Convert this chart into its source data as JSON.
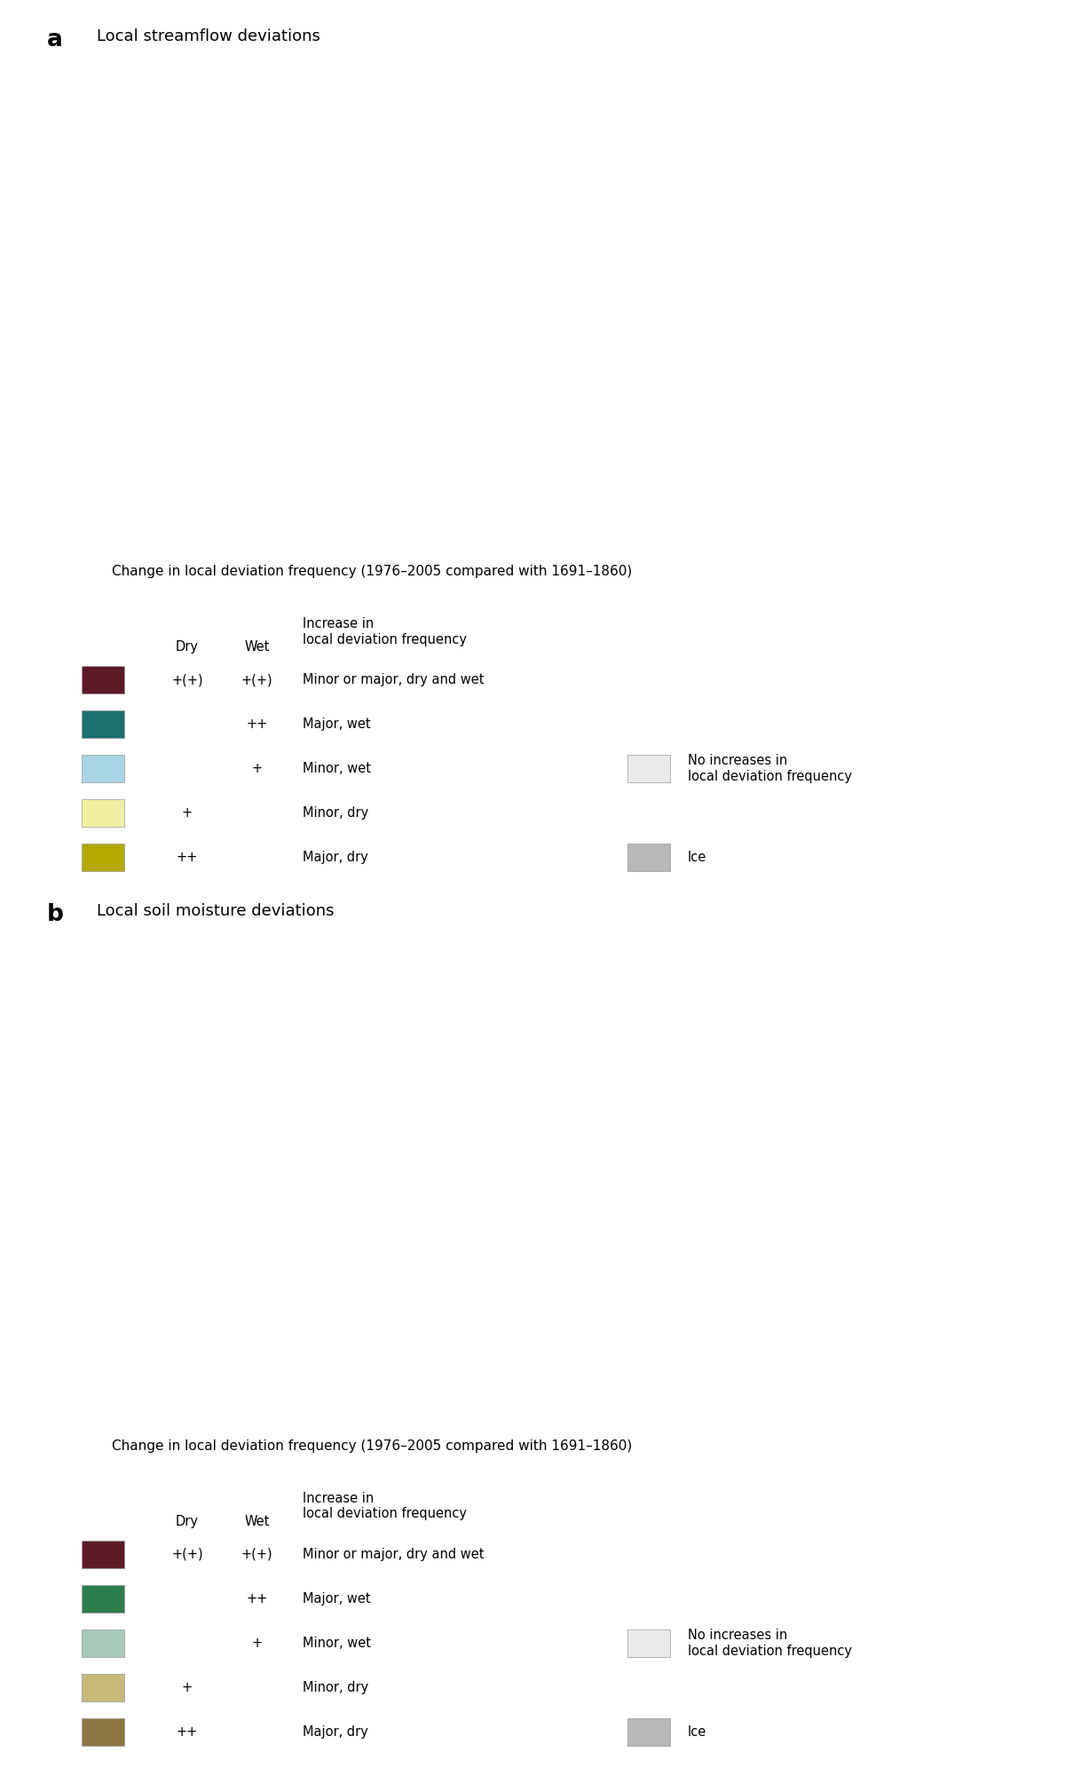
{
  "panel_a_label": "a",
  "panel_a_title": "Local streamflow deviations",
  "panel_b_label": "b",
  "panel_b_title": "Local soil moisture deviations",
  "legend_title": "Change in local deviation frequency (1976–2005 compared with 1691–1860)",
  "col_dry": "Dry",
  "col_wet": "Wet",
  "col_inc": "Increase in\nlocal deviation frequency",
  "legend_rows": [
    {
      "color_key": "both",
      "dry": "+(+)",
      "wet": "+(+)",
      "desc": "Minor or major, dry and wet"
    },
    {
      "color_key": "major_wet",
      "dry": "",
      "wet": "++",
      "desc": "Major, wet"
    },
    {
      "color_key": "minor_wet",
      "dry": "",
      "wet": "+",
      "desc": "Minor, wet"
    },
    {
      "color_key": "minor_dry",
      "dry": "+",
      "wet": "",
      "desc": "Minor, dry"
    },
    {
      "color_key": "major_dry",
      "dry": "++",
      "wet": "",
      "desc": "Major, dry"
    }
  ],
  "legend_right": [
    {
      "color_key": "no_increase",
      "desc": "No increases in\nlocal deviation frequency"
    },
    {
      "color_key": "ice",
      "desc": "Ice"
    }
  ],
  "streamflow_colors": {
    "both": "#5C1A28",
    "major_wet": "#1B7070",
    "minor_wet": "#A8D4E6",
    "minor_dry": "#F0F0A0",
    "major_dry": "#B5A800",
    "no_increase": "#EAEAEA",
    "ice": "#B8B8B8",
    "ocean": "#FFFFFF"
  },
  "soilmoisture_colors": {
    "both": "#5C1A28",
    "major_wet": "#2E7D4F",
    "minor_wet": "#A8C8B8",
    "minor_dry": "#C8B87A",
    "major_dry": "#8B7540",
    "no_increase": "#EAEAEA",
    "ice": "#B8B8B8",
    "ocean": "#FFFFFF"
  },
  "fig_bg": "#FFFFFF",
  "figsize": [
    12,
    20
  ],
  "dpi": 100,
  "map_extent": [
    -180,
    180,
    -60,
    88
  ],
  "streamflow_country_colors": {
    "Canada": "minor_wet",
    "United States of America": "major_dry",
    "Mexico": "major_dry",
    "Cuba": "major_dry",
    "Guatemala": "major_dry",
    "Honduras": "major_dry",
    "Nicaragua": "major_dry",
    "Costa Rica": "major_dry",
    "Panama": "major_dry",
    "Colombia": "major_dry",
    "Venezuela": "major_dry",
    "Guyana": "major_dry",
    "Suriname": "major_dry",
    "Brazil": "major_dry",
    "Ecuador": "major_dry",
    "Peru": "major_dry",
    "Bolivia": "major_dry",
    "Paraguay": "minor_dry",
    "Chile": "minor_dry",
    "Argentina": "minor_dry",
    "Uruguay": "minor_dry",
    "Iceland": "minor_wet",
    "Norway": "minor_wet",
    "Sweden": "minor_wet",
    "Finland": "minor_wet",
    "Denmark": "minor_wet",
    "United Kingdom": "minor_wet",
    "Ireland": "minor_wet",
    "Portugal": "major_dry",
    "Spain": "major_dry",
    "France": "major_dry",
    "Belgium": "major_dry",
    "Netherlands": "major_dry",
    "Germany": "major_dry",
    "Switzerland": "major_dry",
    "Austria": "major_dry",
    "Italy": "major_dry",
    "Czech Republic": "major_dry",
    "Slovakia": "major_dry",
    "Poland": "major_dry",
    "Hungary": "major_dry",
    "Romania": "major_dry",
    "Bulgaria": "major_dry",
    "Greece": "major_dry",
    "Serbia": "major_dry",
    "Croatia": "major_dry",
    "Bosnia and Herzegovina": "major_dry",
    "Slovenia": "major_dry",
    "Albania": "major_dry",
    "North Macedonia": "major_dry",
    "Moldova": "major_dry",
    "Ukraine": "major_dry",
    "Belarus": "major_dry",
    "Lithuania": "minor_wet",
    "Latvia": "minor_wet",
    "Estonia": "minor_wet",
    "Russia": "major_dry",
    "Kazakhstan": "major_dry",
    "Uzbekistan": "major_dry",
    "Turkmenistan": "major_dry",
    "Kyrgyzstan": "major_dry",
    "Tajikistan": "major_dry",
    "Afghanistan": "major_dry",
    "Pakistan": "major_dry",
    "India": "major_dry",
    "Nepal": "major_dry",
    "Bangladesh": "major_dry",
    "Myanmar": "major_dry",
    "Thailand": "major_dry",
    "Vietnam": "major_dry",
    "Cambodia": "major_dry",
    "Laos": "major_dry",
    "Malaysia": "major_dry",
    "Indonesia": "major_dry",
    "Philippines": "major_dry",
    "China": "major_dry",
    "Mongolia": "major_dry",
    "North Korea": "major_dry",
    "South Korea": "major_dry",
    "Japan": "minor_wet",
    "Turkey": "major_dry",
    "Syria": "major_dry",
    "Iraq": "major_dry",
    "Iran": "major_dry",
    "Saudi Arabia": "major_dry",
    "Yemen": "major_dry",
    "Oman": "major_dry",
    "United Arab Emirates": "major_dry",
    "Israel": "major_dry",
    "Jordan": "major_dry",
    "Lebanon": "major_dry",
    "Georgia": "major_dry",
    "Armenia": "major_dry",
    "Azerbaijan": "major_dry",
    "Morocco": "major_dry",
    "Algeria": "major_dry",
    "Tunisia": "major_dry",
    "Libya": "major_dry",
    "Egypt": "major_dry",
    "Sudan": "major_dry",
    "Ethiopia": "major_dry",
    "Somalia": "major_dry",
    "Kenya": "major_dry",
    "Tanzania": "major_dry",
    "Mozambique": "major_dry",
    "Zimbabwe": "major_dry",
    "Zambia": "major_dry",
    "Angola": "major_dry",
    "Democratic Republic of the Congo": "major_dry",
    "Republic of Congo": "major_dry",
    "Central African Republic": "major_dry",
    "Cameroon": "major_dry",
    "Nigeria": "major_dry",
    "Niger": "major_dry",
    "Mali": "major_dry",
    "Mauritania": "major_dry",
    "Senegal": "major_dry",
    "Guinea": "major_dry",
    "Ivory Coast": "major_dry",
    "Ghana": "major_dry",
    "Burkina Faso": "major_dry",
    "Chad": "major_dry",
    "South Africa": "minor_dry",
    "Botswana": "minor_dry",
    "Namibia": "minor_dry",
    "Madagascar": "major_dry",
    "New Zealand": "minor_wet",
    "Australia": "minor_dry",
    "Papua New Guinea": "major_dry",
    "Greenland": "ice"
  },
  "soilmoisture_country_colors": {
    "Canada": "major_wet",
    "United States of America": "major_dry",
    "Mexico": "major_dry",
    "Cuba": "minor_dry",
    "Guatemala": "minor_dry",
    "Honduras": "minor_dry",
    "Nicaragua": "minor_dry",
    "Costa Rica": "minor_dry",
    "Panama": "minor_dry",
    "Colombia": "minor_dry",
    "Venezuela": "minor_dry",
    "Guyana": "minor_dry",
    "Suriname": "minor_dry",
    "Brazil": "major_dry",
    "Ecuador": "minor_dry",
    "Peru": "major_dry",
    "Bolivia": "major_dry",
    "Paraguay": "major_dry",
    "Chile": "major_dry",
    "Argentina": "major_wet",
    "Uruguay": "major_dry",
    "Iceland": "major_wet",
    "Norway": "major_wet",
    "Sweden": "major_wet",
    "Finland": "major_wet",
    "Denmark": "major_wet",
    "United Kingdom": "major_wet",
    "Ireland": "major_wet",
    "Portugal": "major_dry",
    "Spain": "major_dry",
    "France": "major_dry",
    "Belgium": "major_dry",
    "Netherlands": "major_dry",
    "Germany": "major_wet",
    "Switzerland": "major_dry",
    "Austria": "major_dry",
    "Italy": "major_dry",
    "Czech Republic": "major_wet",
    "Slovakia": "major_dry",
    "Poland": "major_wet",
    "Hungary": "major_dry",
    "Romania": "major_dry",
    "Bulgaria": "major_dry",
    "Greece": "major_dry",
    "Serbia": "major_dry",
    "Croatia": "major_dry",
    "Bosnia and Herzegovina": "major_dry",
    "Slovenia": "major_dry",
    "Albania": "major_dry",
    "North Macedonia": "major_dry",
    "Moldova": "major_dry",
    "Ukraine": "major_dry",
    "Belarus": "major_wet",
    "Lithuania": "major_wet",
    "Latvia": "major_wet",
    "Estonia": "major_wet",
    "Russia": "major_wet",
    "Kazakhstan": "major_dry",
    "Uzbekistan": "major_dry",
    "Turkmenistan": "major_dry",
    "Kyrgyzstan": "major_dry",
    "Tajikistan": "major_dry",
    "Afghanistan": "major_dry",
    "Pakistan": "major_dry",
    "India": "major_dry",
    "Nepal": "major_dry",
    "Bangladesh": "major_dry",
    "Myanmar": "major_wet",
    "Thailand": "major_dry",
    "Vietnam": "major_wet",
    "Cambodia": "major_dry",
    "Laos": "major_wet",
    "Malaysia": "major_wet",
    "Indonesia": "major_wet",
    "Philippines": "major_wet",
    "China": "major_dry",
    "Mongolia": "major_dry",
    "North Korea": "major_wet",
    "South Korea": "major_wet",
    "Japan": "major_wet",
    "Turkey": "major_dry",
    "Syria": "major_dry",
    "Iraq": "major_dry",
    "Iran": "major_dry",
    "Saudi Arabia": "major_dry",
    "Yemen": "major_dry",
    "Oman": "major_dry",
    "United Arab Emirates": "major_dry",
    "Israel": "major_dry",
    "Jordan": "major_dry",
    "Lebanon": "major_dry",
    "Georgia": "major_wet",
    "Armenia": "major_dry",
    "Azerbaijan": "major_dry",
    "Morocco": "major_dry",
    "Algeria": "major_dry",
    "Tunisia": "major_dry",
    "Libya": "major_dry",
    "Egypt": "major_dry",
    "Sudan": "major_dry",
    "Ethiopia": "major_dry",
    "Somalia": "major_dry",
    "Kenya": "major_dry",
    "Tanzania": "major_dry",
    "Mozambique": "major_dry",
    "Zimbabwe": "major_dry",
    "Zambia": "major_dry",
    "Angola": "major_dry",
    "Democratic Republic of the Congo": "major_dry",
    "Republic of Congo": "major_dry",
    "Central African Republic": "major_dry",
    "Cameroon": "major_dry",
    "Nigeria": "major_dry",
    "Niger": "major_dry",
    "Mali": "major_dry",
    "Mauritania": "major_dry",
    "Senegal": "major_dry",
    "Guinea": "major_dry",
    "Ivory Coast": "major_dry",
    "Ghana": "major_dry",
    "Burkina Faso": "major_dry",
    "Chad": "major_dry",
    "South Africa": "major_dry",
    "Botswana": "major_dry",
    "Namibia": "major_dry",
    "Madagascar": "major_dry",
    "New Zealand": "major_wet",
    "Australia": "major_dry",
    "Papua New Guinea": "major_wet",
    "Greenland": "ice"
  }
}
